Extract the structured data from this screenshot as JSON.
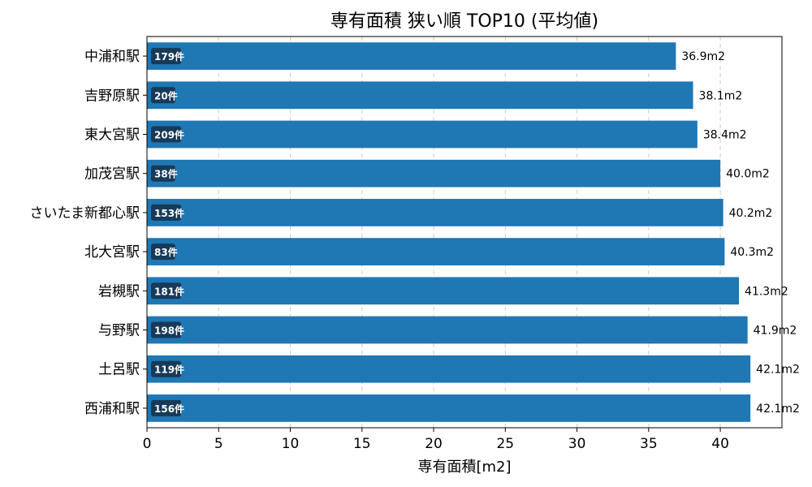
{
  "chart_data": {
    "type": "bar",
    "orientation": "horizontal",
    "title": "専有面積 狭い順 TOP10 (平均値)",
    "xlabel": "専有面積[m2]",
    "ylabel": "",
    "xlim": [
      0,
      44.3
    ],
    "xticks": [
      0,
      5,
      10,
      15,
      20,
      25,
      30,
      35,
      40
    ],
    "grid": "x-dashed",
    "bar_color": "#1f77b4",
    "badge_color": "#173a58",
    "categories": [
      "中浦和駅",
      "吉野原駅",
      "東大宮駅",
      "加茂宮駅",
      "さいたま新都心駅",
      "北大宮駅",
      "岩槻駅",
      "与野駅",
      "土呂駅",
      "西浦和駅"
    ],
    "values": [
      36.9,
      38.1,
      38.4,
      40.0,
      40.2,
      40.3,
      41.3,
      41.9,
      42.1,
      42.1
    ],
    "value_labels": [
      "36.9m2",
      "38.1m2",
      "38.4m2",
      "40.0m2",
      "40.2m2",
      "40.3m2",
      "41.3m2",
      "41.9m2",
      "42.1m2",
      "42.1m2"
    ],
    "counts": [
      "179件",
      "20件",
      "209件",
      "38件",
      "153件",
      "83件",
      "181件",
      "198件",
      "119件",
      "156件"
    ]
  }
}
